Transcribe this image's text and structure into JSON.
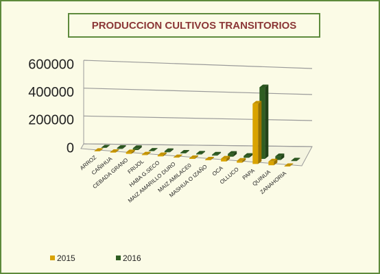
{
  "chart_data": {
    "type": "bar3d",
    "title": "PRODUCCION CULTIVOS  TRANSITORIOS",
    "categories": [
      "ARROZ",
      "CAÑIHUA",
      "CEBADA GRANO",
      "FRIJOL",
      "HABA G.SECO",
      "MAIZ AMARILLO DURO",
      "MAIZ AMILACE0",
      "MASHUA O IZAÑO",
      "OCA",
      "OLLUCO",
      "PAPA",
      "QUINUA",
      "ZANAHORIA"
    ],
    "series": [
      {
        "name": "2015",
        "color": "#d9a300",
        "values": [
          2000,
          3000,
          8000,
          3000,
          6000,
          2000,
          4000,
          3000,
          15000,
          10000,
          320000,
          20000,
          2000
        ]
      },
      {
        "name": "2016",
        "color": "#2f5e22",
        "values": [
          1000,
          5000,
          10000,
          2000,
          6000,
          3000,
          4000,
          5000,
          15000,
          10000,
          380000,
          20000,
          3000
        ]
      }
    ],
    "ylim": [
      0,
      600000
    ],
    "yticks": [
      0,
      200000,
      400000,
      600000
    ],
    "grid": true,
    "legend": "bottom-left"
  }
}
